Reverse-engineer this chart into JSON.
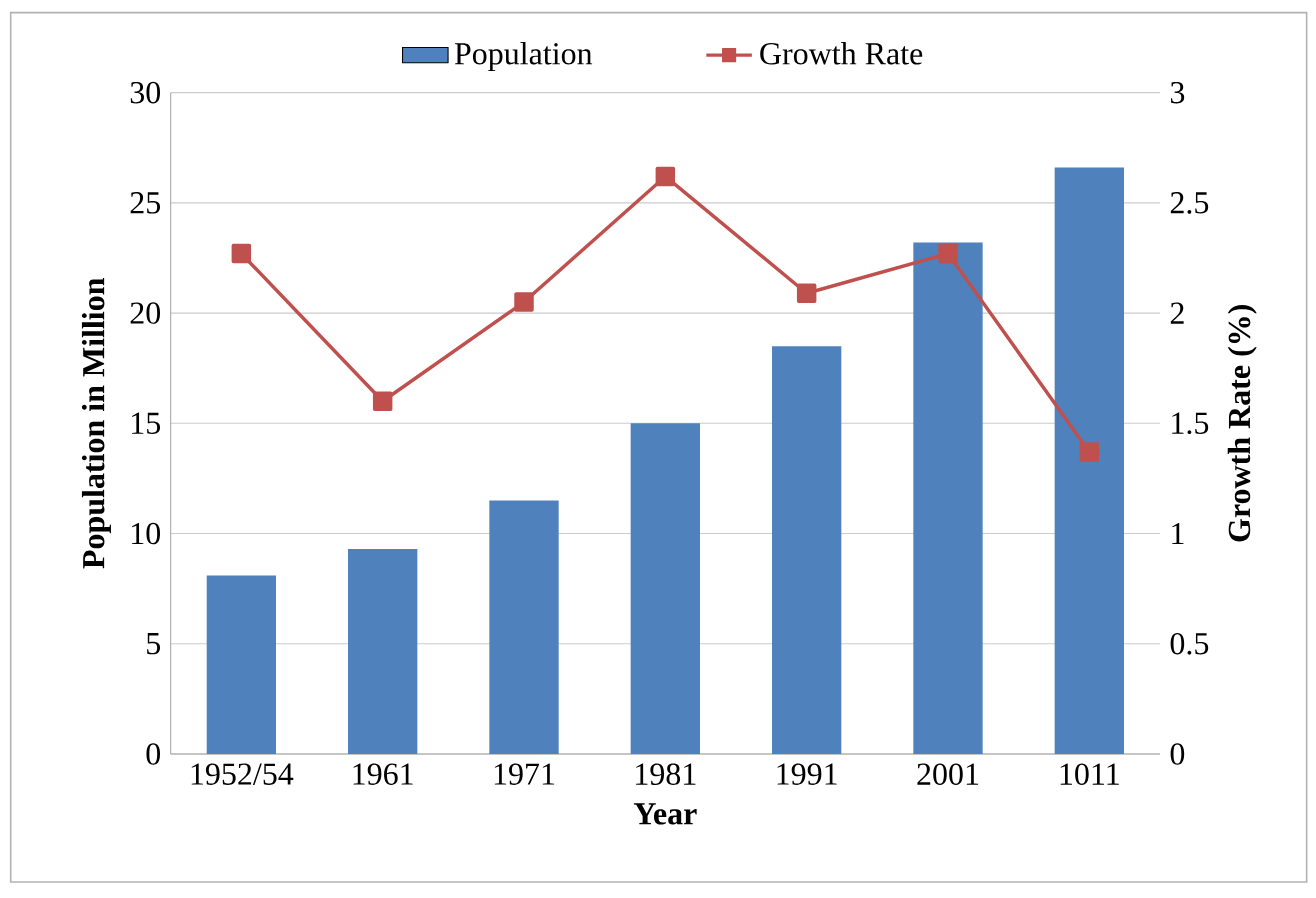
{
  "chart_data": {
    "type": "bar",
    "xlabel": "Year",
    "ylabel": "Population in Million",
    "y2label": "Growth Rate (%)",
    "categories": [
      "1952/54",
      "1961",
      "1971",
      "1981",
      "1991",
      "2001",
      "1011"
    ],
    "series": [
      {
        "name": "Population",
        "color": "#4f81bd",
        "values": [
          8.1,
          9.3,
          11.5,
          15.0,
          18.5,
          23.2,
          26.6
        ]
      },
      {
        "name": "Growth Rate",
        "type": "line",
        "axis": "y2",
        "color": "#c0504d",
        "marker": "square",
        "line_style": "solid",
        "values": [
          2.27,
          1.6,
          2.05,
          2.62,
          2.09,
          2.27,
          1.37
        ]
      }
    ],
    "ylim": [
      0,
      30
    ],
    "yticks": [
      0,
      5,
      10,
      15,
      20,
      25,
      30
    ],
    "y2lim": [
      0,
      3
    ],
    "y2ticks": [
      0,
      {
        "value": 0.5,
        "label": "0.5"
      },
      1,
      {
        "value": 1.5,
        "label": "1.5"
      },
      2,
      {
        "value": 2.5,
        "label": "2.5"
      },
      3
    ],
    "grid": "y",
    "legend": "top"
  }
}
